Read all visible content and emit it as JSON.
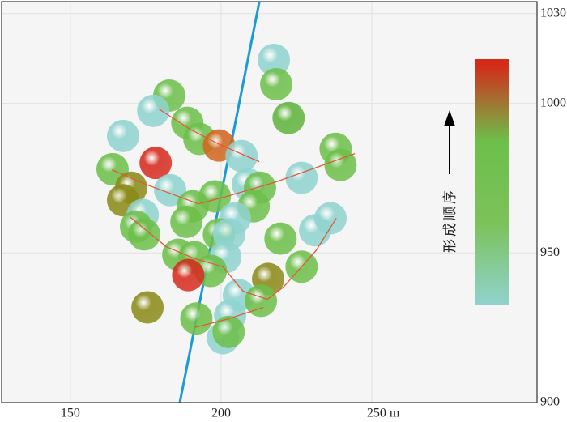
{
  "chart_data": {
    "type": "scatter",
    "xlim": [
      127.2,
      304.8
    ],
    "ylim": [
      900,
      1034
    ],
    "xticks": [
      150,
      200,
      {
        "value": 250,
        "label": "250 m"
      }
    ],
    "yticks": [
      900,
      950,
      1000,
      1030
    ],
    "grid": true,
    "x": [
      217.5,
      218.3,
      222.4,
      182.8,
      177.5,
      167.5,
      188.8,
      192.8,
      199.3,
      178.3,
      206.8,
      164.0,
      170.2,
      167.5,
      238.0,
      239.6,
      226.7,
      208.9,
      212.9,
      183.1,
      197.9,
      190.6,
      210.8,
      204.6,
      174.0,
      188.5,
      171.8,
      174.5,
      199.3,
      202.7,
      219.7,
      231.2,
      236.3,
      185.8,
      191.2,
      201.4,
      196.6,
      189.1,
      226.7,
      215.6,
      205.9,
      213.2,
      175.6,
      191.8,
      203.0,
      200.6,
      202.5
    ],
    "y": [
      1014.5,
      1006.4,
      995.1,
      1002.6,
      997.5,
      989.1,
      993.5,
      988.1,
      985.9,
      980.1,
      982.4,
      978.0,
      971.8,
      967.6,
      984.8,
      979.4,
      975.1,
      972.9,
      971.8,
      971.0,
      968.9,
      965.6,
      965.6,
      961.6,
      962.7,
      960.4,
      958.8,
      956.2,
      956.2,
      956.2,
      954.8,
      957.6,
      961.6,
      949.4,
      948.6,
      948.6,
      944.0,
      942.6,
      945.4,
      941.3,
      935.9,
      934.0,
      931.8,
      928.1,
      929.1,
      921.5,
      923.6
    ],
    "colors": [
      "#8fd3cf",
      "#6dbf4a",
      "#5fb33c",
      "#6dbf4a",
      "#8fd3cf",
      "#8fd3cf",
      "#6dbf4a",
      "#6dbf4a",
      "#d0651e",
      "#d62a1e",
      "#8fd3cf",
      "#6dbf4a",
      "#8a8a18",
      "#8a8a18",
      "#6dbf4a",
      "#6dbf4a",
      "#8fd3cf",
      "#8fd3cf",
      "#6dbf4a",
      "#8fd3cf",
      "#6dbf4a",
      "#6dbf4a",
      "#6dbf4a",
      "#8fd3cf",
      "#8fd3cf",
      "#6dbf4a",
      "#6dbf4a",
      "#6dbf4a",
      "#6dbf4a",
      "#8fd3cf",
      "#6dbf4a",
      "#8fd3cf",
      "#8fd3cf",
      "#6dbf4a",
      "#6dbf4a",
      "#8fd3cf",
      "#6dbf4a",
      "#d62a1e",
      "#6dbf4a",
      "#8a8a18",
      "#8fd3cf",
      "#6dbf4a",
      "#8a8a18",
      "#6dbf4a",
      "#8fd3cf",
      "#8fd3cf",
      "#6dbf4a"
    ],
    "trend_lines": [
      {
        "color": "#e05a3a",
        "x": [
          179.4,
          189.8,
          199.2,
          212.7
        ],
        "y": [
          998.1,
          991.3,
          986.4,
          980.5
        ]
      },
      {
        "color": "#e05a3a",
        "x": [
          163.8,
          175.1,
          192.5,
          201.9,
          218.1,
          244.4
        ],
        "y": [
          977.8,
          972.9,
          966.4,
          968.9,
          973.7,
          983.2
        ]
      },
      {
        "color": "#e05a3a",
        "x": [
          169.7,
          181.8,
          191.2,
          200.6,
          207.3,
          215.4,
          220.7,
          231.5,
          238.2
        ],
        "y": [
          962.1,
          952.1,
          948.1,
          945.4,
          937.2,
          934.5,
          938.6,
          950.8,
          961.6
        ]
      },
      {
        "color": "#e05a3a",
        "x": [
          191.2,
          201.9,
          214.0
        ],
        "y": [
          925.1,
          927.8,
          931.8
        ]
      }
    ],
    "fault_line": {
      "color": "#1a9ad6",
      "x": [
        186.3,
        212.7
      ],
      "y": [
        900,
        1034
      ]
    },
    "colorbar": {
      "label": "形成顺序",
      "colors": [
        "#d42a1a",
        "#6dbf4a",
        "#7cc25a",
        "#8fd3cf"
      ]
    }
  }
}
